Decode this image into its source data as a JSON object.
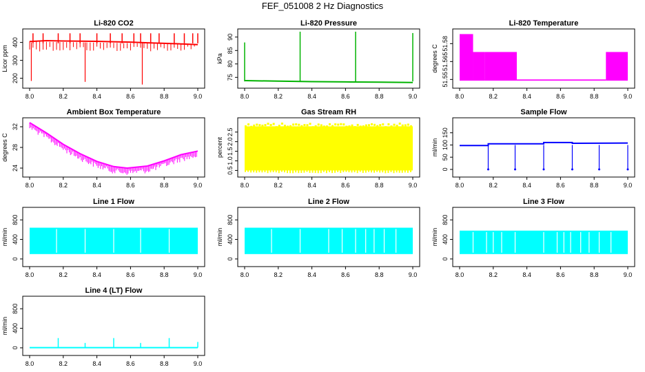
{
  "suptitle": "FEF_051008  2 Hz Diagnostics",
  "colors": {
    "red": "#ff0000",
    "green": "#00b300",
    "magenta": "#ff00ff",
    "yellow": "#ffff00",
    "blue": "#0000ff",
    "cyan": "#00ffff",
    "axis": "#000000"
  },
  "chart_data": [
    {
      "type": "line",
      "title": "Li-820 CO2",
      "ylabel": "Licor ppm",
      "color": "red",
      "xlim": [
        8.0,
        9.0
      ],
      "ylim": [
        160,
        460
      ],
      "xticks": [
        8.0,
        8.2,
        8.4,
        8.6,
        8.8,
        9.0
      ],
      "xtick_labels": [
        "8.0",
        "8.2",
        "8.4",
        "8.6",
        "8.8",
        "9.0"
      ],
      "yticks": [
        200,
        300,
        400
      ],
      "ytick_labels": [
        "200",
        "300",
        "400"
      ],
      "series": [
        {
          "name": "CO2",
          "x": [
            8.0,
            8.1,
            8.2,
            8.3,
            8.4,
            8.5,
            8.6,
            8.7,
            8.8,
            8.9,
            9.0
          ],
          "y": [
            405,
            410,
            408,
            407,
            406,
            404,
            402,
            398,
            395,
            392,
            388
          ]
        }
      ],
      "spikes_up": [
        8.02,
        8.08,
        8.17,
        8.24,
        8.3,
        8.4,
        8.48,
        8.55,
        8.62,
        8.66,
        8.72,
        8.77,
        8.86,
        8.92,
        8.97,
        9.0
      ],
      "spikes_down": [
        [
          8.01,
          185
        ],
        [
          8.33,
          180
        ],
        [
          8.67,
          165
        ]
      ]
    },
    {
      "type": "line",
      "title": "Li-820 Pressure",
      "ylabel": "kPa",
      "color": "green",
      "xlim": [
        8.0,
        9.0
      ],
      "ylim": [
        72,
        92
      ],
      "xticks": [
        8.0,
        8.2,
        8.4,
        8.6,
        8.8,
        9.0
      ],
      "xtick_labels": [
        "8.0",
        "8.2",
        "8.4",
        "8.6",
        "8.8",
        "9.0"
      ],
      "yticks": [
        75,
        80,
        85,
        90
      ],
      "ytick_labels": [
        "75",
        "80",
        "85",
        "90"
      ],
      "series": [
        {
          "name": "Pressure",
          "x": [
            8.0,
            8.2,
            8.4,
            8.6,
            8.8,
            9.0
          ],
          "y": [
            73.8,
            73.6,
            73.4,
            73.3,
            73.2,
            73.1
          ]
        }
      ],
      "spikes_up": [
        [
          8.0,
          88
        ],
        [
          8.33,
          92
        ],
        [
          8.66,
          92
        ],
        [
          9.0,
          91.5
        ]
      ]
    },
    {
      "type": "area",
      "title": "Li-820 Temperature",
      "ylabel": "degrees C",
      "color": "magenta",
      "xlim": [
        8.0,
        9.0
      ],
      "ylim": [
        51.545,
        51.59
      ],
      "xticks": [
        8.0,
        8.2,
        8.4,
        8.6,
        8.8,
        9.0
      ],
      "xtick_labels": [
        "8.0",
        "8.2",
        "8.4",
        "8.6",
        "8.8",
        "9.0"
      ],
      "yticks": [
        51.55,
        51.565,
        51.58
      ],
      "ytick_labels": [
        "51.55",
        "51.565",
        "51.58"
      ],
      "bands": [
        {
          "x0": 8.0,
          "x1": 8.08,
          "y0": 51.549,
          "y1": 51.588
        },
        {
          "x0": 8.08,
          "x1": 8.15,
          "y0": 51.549,
          "y1": 51.573
        },
        {
          "x0": 8.15,
          "x1": 8.34,
          "y0": 51.549,
          "y1": 51.573
        },
        {
          "x0": 8.34,
          "x1": 8.87,
          "y0": 51.549,
          "y1": 51.55
        },
        {
          "x0": 8.87,
          "x1": 9.0,
          "y0": 51.549,
          "y1": 51.573
        }
      ]
    },
    {
      "type": "line",
      "title": "Ambient Box Temperature",
      "ylabel": "degrees C",
      "color": "magenta",
      "xlim": [
        8.0,
        9.0
      ],
      "ylim": [
        22.8,
        33.2
      ],
      "xticks": [
        8.0,
        8.2,
        8.4,
        8.6,
        8.8,
        9.0
      ],
      "xtick_labels": [
        "8.0",
        "8.2",
        "8.4",
        "8.6",
        "8.8",
        "9.0"
      ],
      "yticks": [
        24,
        28,
        32
      ],
      "ytick_labels": [
        "24",
        "28",
        "32"
      ],
      "series": [
        {
          "name": "Ambient",
          "x": [
            8.0,
            8.1,
            8.2,
            8.3,
            8.4,
            8.5,
            8.58,
            8.7,
            8.8,
            8.9,
            9.0
          ],
          "y": [
            32.8,
            30.8,
            28.6,
            26.8,
            25.3,
            24.3,
            24.0,
            24.4,
            25.4,
            26.6,
            27.3
          ]
        }
      ],
      "noise_band": 1.0
    },
    {
      "type": "area",
      "title": "Gas Stream RH",
      "ylabel": "percent",
      "color": "yellow",
      "xlim": [
        8.0,
        9.0
      ],
      "ylim": [
        0.3,
        3.1
      ],
      "xticks": [
        8.0,
        8.2,
        8.4,
        8.6,
        8.8,
        9.0
      ],
      "xtick_labels": [
        "8.0",
        "8.2",
        "8.4",
        "8.6",
        "8.8",
        "9.0"
      ],
      "yticks": [
        0.5,
        1.0,
        1.5,
        2.0,
        2.5
      ],
      "ytick_labels": [
        "0.5",
        "1.0",
        "1.5",
        "2.0",
        "2.5"
      ],
      "bands": [
        {
          "x0": 8.0,
          "x1": 9.0,
          "y0": 0.5,
          "y1": 2.8
        }
      ]
    },
    {
      "type": "line",
      "title": "Sample Flow",
      "ylabel": "ml/min",
      "color": "blue",
      "xlim": [
        8.0,
        9.0
      ],
      "ylim": [
        -20,
        200
      ],
      "xticks": [
        8.0,
        8.2,
        8.4,
        8.6,
        8.8,
        9.0
      ],
      "xtick_labels": [
        "8.0",
        "8.2",
        "8.4",
        "8.6",
        "8.8",
        "9.0"
      ],
      "yticks": [
        0,
        50,
        100,
        150
      ],
      "ytick_labels": [
        "0",
        "50",
        "100",
        "150"
      ],
      "series": [
        {
          "name": "Sample",
          "x": [
            8.0,
            8.17,
            8.17,
            8.5,
            8.5,
            8.67,
            8.67,
            9.0
          ],
          "y": [
            98,
            98,
            105,
            105,
            110,
            110,
            107,
            108
          ]
        }
      ],
      "dips": [
        8.17,
        8.33,
        8.5,
        8.67,
        8.83,
        9.0
      ]
    },
    {
      "type": "area",
      "title": "Line 1 Flow",
      "ylabel": "ml/min",
      "color": "cyan",
      "xlim": [
        8.0,
        9.0
      ],
      "ylim": [
        -100,
        1000
      ],
      "xticks": [
        8.0,
        8.2,
        8.4,
        8.6,
        8.8,
        9.0
      ],
      "xtick_labels": [
        "8.0",
        "8.2",
        "8.4",
        "8.6",
        "8.8",
        "9.0"
      ],
      "yticks": [
        0,
        400,
        800
      ],
      "ytick_labels": [
        "0",
        "400",
        "800"
      ],
      "bands": [
        {
          "x0": 8.0,
          "x1": 9.0,
          "y0": 100,
          "y1": 640
        }
      ],
      "gaps": [
        8.16,
        8.33,
        8.5,
        8.66,
        8.83
      ]
    },
    {
      "type": "area",
      "title": "Line 2 Flow",
      "ylabel": "ml/min",
      "color": "cyan",
      "xlim": [
        8.0,
        9.0
      ],
      "ylim": [
        -100,
        1000
      ],
      "xticks": [
        8.0,
        8.2,
        8.4,
        8.6,
        8.8,
        9.0
      ],
      "xtick_labels": [
        "8.0",
        "8.2",
        "8.4",
        "8.6",
        "8.8",
        "9.0"
      ],
      "yticks": [
        0,
        400,
        800
      ],
      "ytick_labels": [
        "0",
        "400",
        "800"
      ],
      "bands": [
        {
          "x0": 8.0,
          "x1": 9.0,
          "y0": 100,
          "y1": 640
        }
      ],
      "gaps": [
        8.16,
        8.33,
        8.5,
        8.58,
        8.66,
        8.72,
        8.77,
        8.83,
        8.9
      ]
    },
    {
      "type": "area",
      "title": "Line 3 Flow",
      "ylabel": "ml/min",
      "color": "cyan",
      "xlim": [
        8.0,
        9.0
      ],
      "ylim": [
        -100,
        1000
      ],
      "xticks": [
        8.0,
        8.2,
        8.4,
        8.6,
        8.8,
        9.0
      ],
      "xtick_labels": [
        "8.0",
        "8.2",
        "8.4",
        "8.6",
        "8.8",
        "9.0"
      ],
      "yticks": [
        0,
        400,
        800
      ],
      "ytick_labels": [
        "0",
        "400",
        "800"
      ],
      "bands": [
        {
          "x0": 8.0,
          "x1": 9.0,
          "y0": 100,
          "y1": 580
        }
      ],
      "gaps": [
        8.08,
        8.16,
        8.2,
        8.25,
        8.33,
        8.5,
        8.58,
        8.62,
        8.66,
        8.72,
        8.77,
        8.83,
        8.9
      ]
    },
    {
      "type": "line",
      "title": "Line 4 (LT) Flow",
      "ylabel": "ml/min",
      "color": "cyan",
      "xlim": [
        8.0,
        9.0
      ],
      "ylim": [
        -100,
        1000
      ],
      "xticks": [
        8.0,
        8.2,
        8.4,
        8.6,
        8.8,
        9.0
      ],
      "xtick_labels": [
        "8.0",
        "8.2",
        "8.4",
        "8.6",
        "8.8",
        "9.0"
      ],
      "yticks": [
        0,
        400,
        800
      ],
      "ytick_labels": [
        "0",
        "400",
        "800"
      ],
      "series": [
        {
          "name": "Line4",
          "x": [
            8.0,
            9.0
          ],
          "y": [
            5,
            5
          ]
        }
      ],
      "spikes_up": [
        [
          8.17,
          200
        ],
        [
          8.33,
          100
        ],
        [
          8.5,
          200
        ],
        [
          8.66,
          100
        ],
        [
          8.83,
          200
        ],
        [
          9.0,
          120
        ]
      ]
    }
  ]
}
